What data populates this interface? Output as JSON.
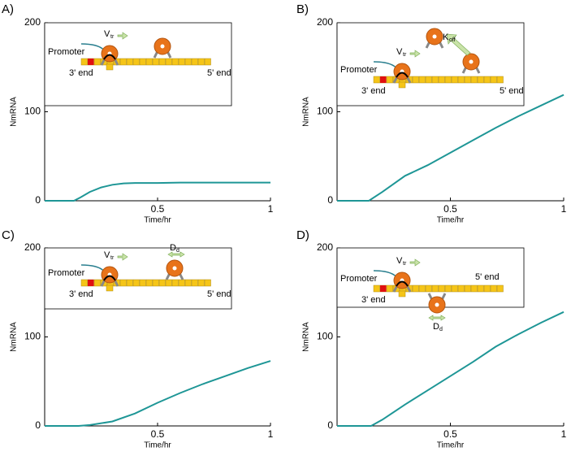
{
  "chart_data": [
    {
      "type": "line",
      "panel_label": "A)",
      "xlabel": "Time/hr",
      "ylabel": "NmRNA",
      "xlim": [
        0,
        1
      ],
      "ylim": [
        0,
        200
      ],
      "xticks": [
        0.5,
        1
      ],
      "yticks": [
        0,
        100,
        200
      ],
      "color": "#1e9696",
      "x": [
        0,
        0.1,
        0.13,
        0.16,
        0.2,
        0.25,
        0.3,
        0.35,
        0.4,
        0.5,
        0.6,
        0.7,
        0.8,
        0.9,
        1
      ],
      "values": [
        0,
        0,
        0,
        4,
        10,
        15,
        18,
        19.5,
        20,
        20,
        20.5,
        20.5,
        20.5,
        20.5,
        20.5
      ],
      "inset": {
        "promoter": "Promoter",
        "rate": "V",
        "rate_sub": "tr",
        "left_end": "3' end",
        "right_end": "5' end"
      }
    },
    {
      "type": "line",
      "panel_label": "B)",
      "xlabel": "Time/hr",
      "ylabel": "NmRNA",
      "xlim": [
        0,
        1
      ],
      "ylim": [
        0,
        200
      ],
      "xticks": [
        0.5,
        1
      ],
      "yticks": [
        0,
        100,
        200
      ],
      "color": "#1e9696",
      "x": [
        0,
        0.1,
        0.14,
        0.2,
        0.3,
        0.4,
        0.5,
        0.6,
        0.7,
        0.8,
        0.9,
        1
      ],
      "values": [
        0,
        0,
        0,
        10,
        28,
        40,
        54,
        68,
        82,
        95,
        107,
        119
      ],
      "inset": {
        "promoter": "Promoter",
        "rate": "V",
        "rate_sub": "tr",
        "left_end": "3' end",
        "right_end": "5' end",
        "extra": "K",
        "extra_sub": "off"
      }
    },
    {
      "type": "line",
      "panel_label": "C)",
      "xlabel": "Time/hr",
      "ylabel": "NmRNA",
      "xlim": [
        0,
        1
      ],
      "ylim": [
        0,
        200
      ],
      "xticks": [
        0.5,
        1
      ],
      "yticks": [
        0,
        100,
        200
      ],
      "color": "#1e9696",
      "x": [
        0,
        0.1,
        0.15,
        0.2,
        0.3,
        0.4,
        0.5,
        0.6,
        0.7,
        0.8,
        0.9,
        1
      ],
      "values": [
        0,
        0,
        0,
        1,
        5,
        14,
        26,
        37,
        47,
        56,
        65,
        73
      ],
      "inset": {
        "promoter": "Promoter",
        "rate": "V",
        "rate_sub": "tr",
        "left_end": "3' end",
        "right_end": "5' end",
        "extra": "D",
        "extra_sub": "d"
      }
    },
    {
      "type": "line",
      "panel_label": "D)",
      "xlabel": "Time/hr",
      "ylabel": "NmRNA",
      "xlim": [
        0,
        1
      ],
      "ylim": [
        0,
        200
      ],
      "xticks": [
        0.5,
        1
      ],
      "yticks": [
        0,
        100,
        200
      ],
      "color": "#1e9696",
      "x": [
        0,
        0.1,
        0.15,
        0.2,
        0.3,
        0.4,
        0.5,
        0.6,
        0.7,
        0.8,
        0.9,
        1
      ],
      "values": [
        0,
        0,
        0,
        7,
        24,
        40,
        56,
        72,
        89,
        103,
        116,
        128
      ],
      "inset": {
        "promoter": "Promoter",
        "rate": "V",
        "rate_sub": "tr",
        "left_end": "3' end",
        "right_end": "5' end",
        "extra": "D",
        "extra_sub": "d"
      }
    }
  ]
}
